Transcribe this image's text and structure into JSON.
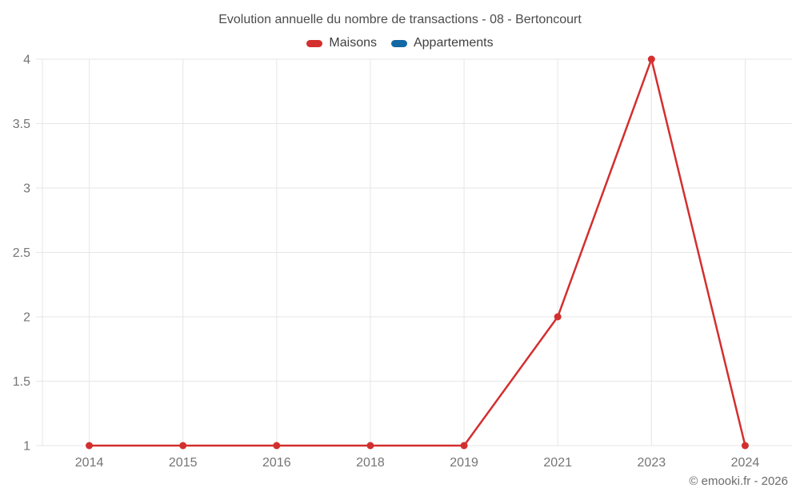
{
  "page": {
    "title": "Evolution annuelle du nombre de transactions - 08 - Bertoncourt",
    "copyright": "© emooki.fr - 2026"
  },
  "colors": {
    "maisons_red": "#d32f2f",
    "appartements_blue": "#1268a3",
    "gridline": "#e6e6e6",
    "axis_label": "#757575",
    "title_text": "#4c4c4c",
    "legend_text": "#3f3f3f",
    "copyright_text": "#6b6b6b",
    "background": "#ffffff"
  },
  "chart_data": {
    "type": "line",
    "title": "Evolution annuelle du nombre de transactions - 08 - Bertoncourt",
    "categories": [
      "2014",
      "2015",
      "2016",
      "2018",
      "2019",
      "2021",
      "2023",
      "2024"
    ],
    "series": [
      {
        "name": "Maisons",
        "color": "#d32f2f",
        "values": [
          1,
          1,
          1,
          1,
          1,
          2,
          4,
          1
        ]
      },
      {
        "name": "Appartements",
        "color": "#1268a3",
        "values": []
      }
    ],
    "yticks": [
      1,
      1.5,
      2,
      2.5,
      3,
      3.5,
      4
    ],
    "ylim": [
      1,
      4
    ],
    "xlabel": "",
    "ylabel": "",
    "grid": true,
    "legend_position": "top",
    "marker": "circle"
  }
}
